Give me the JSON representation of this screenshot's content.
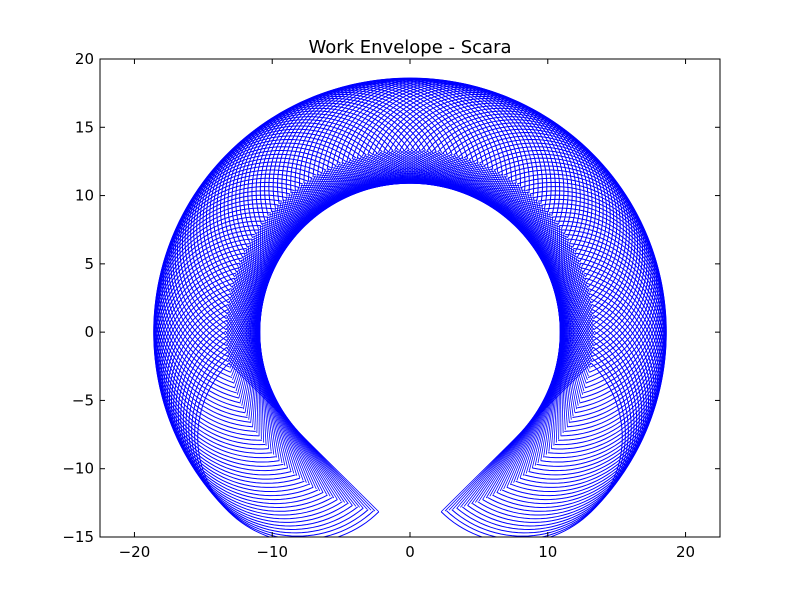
{
  "chart_data": {
    "type": "line",
    "title": "Work Envelope - Scara",
    "xlabel": "",
    "ylabel": "",
    "xlim": [
      -22.5,
      22.5
    ],
    "ylim": [
      -15,
      20
    ],
    "xticks": [
      -20,
      -10,
      0,
      10,
      20
    ],
    "xtick_labels": [
      "−20",
      "−10",
      "0",
      "10",
      "20"
    ],
    "yticks": [
      -15,
      -10,
      -5,
      0,
      5,
      10,
      15,
      20
    ],
    "ytick_labels": [
      "−15",
      "−10",
      "−5",
      "0",
      "5",
      "10",
      "15",
      "20"
    ],
    "grid": false,
    "legend": "none",
    "series_color": "#0000ff",
    "robot": {
      "link1_length": 10.9,
      "link2_length": 7.7,
      "theta1_range_deg": [
        -45,
        225
      ],
      "theta2_range_deg": [
        -90,
        90
      ],
      "outer_reach_radius": 18.6,
      "inner_arm_radius": 13.2,
      "min_reach_radius": 7.7
    }
  }
}
